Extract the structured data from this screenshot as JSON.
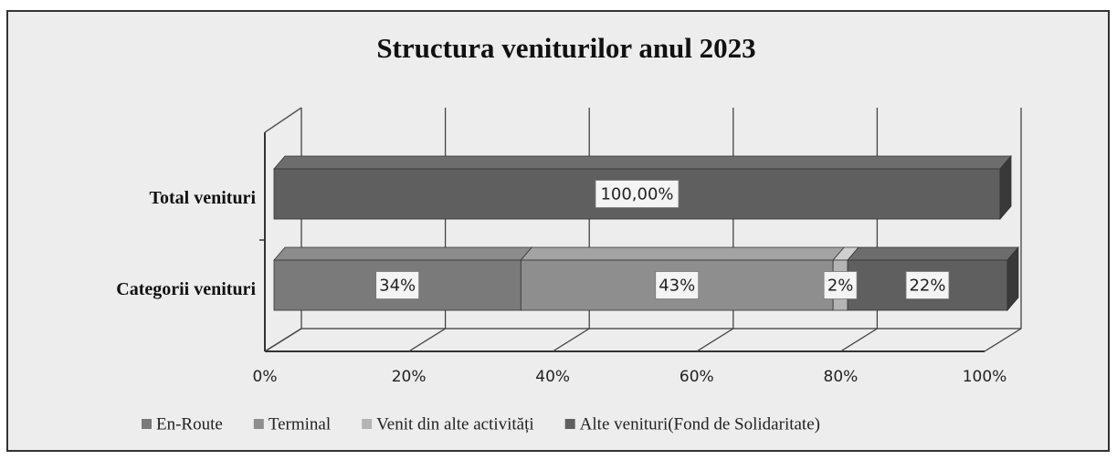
{
  "chart_data": {
    "type": "bar",
    "orientation": "horizontal",
    "stacked": true,
    "three_d": true,
    "title": "Structura veniturilor anul 2023",
    "categories": [
      "Total venituri",
      "Categorii venituri"
    ],
    "series": [
      {
        "name": "En-Route",
        "color": "#7a7a7a",
        "values": [
          null,
          34
        ],
        "value_labels": [
          null,
          "34%"
        ]
      },
      {
        "name": "Terminal",
        "color": "#8e8e8e",
        "values": [
          null,
          43
        ],
        "value_labels": [
          null,
          "43%"
        ]
      },
      {
        "name": "Venit din alte activități",
        "color": "#b4b4b4",
        "values": [
          null,
          2
        ],
        "value_labels": [
          null,
          "2%"
        ]
      },
      {
        "name": "Alte venituri(Fond de Solidaritate)",
        "color": "#5f5f5f",
        "values": [
          100,
          22
        ],
        "value_labels": [
          "100,00%",
          "22%"
        ]
      }
    ],
    "xlim": [
      0,
      100
    ],
    "xticks": [
      {
        "value": 0,
        "label": "0%"
      },
      {
        "value": 20,
        "label": "20%"
      },
      {
        "value": 40,
        "label": "40%"
      },
      {
        "value": 60,
        "label": "60%"
      },
      {
        "value": 80,
        "label": "80%"
      },
      {
        "value": 100,
        "label": "100%"
      }
    ],
    "grid": true,
    "legend": "bottom"
  }
}
